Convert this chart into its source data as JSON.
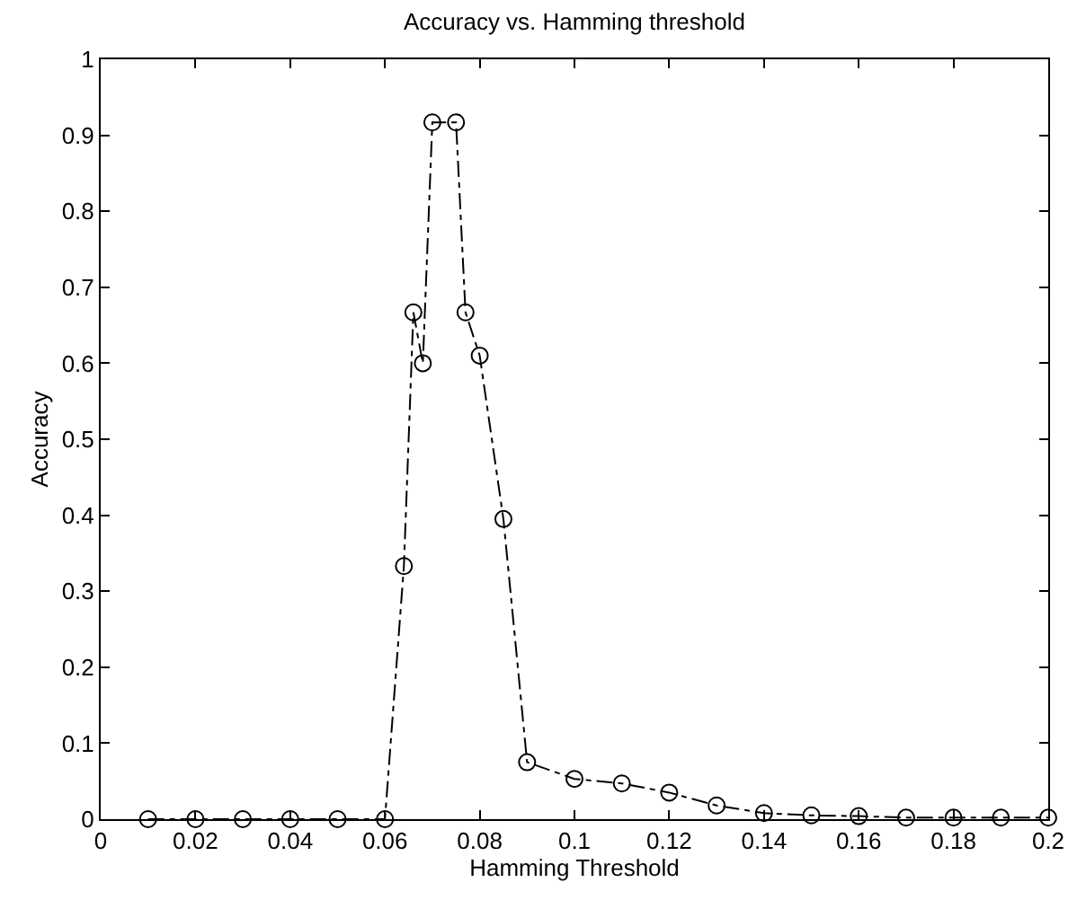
{
  "chart_data": {
    "type": "line",
    "title": "Accuracy vs. Hamming threshold",
    "xlabel": "Hamming Threshold",
    "ylabel": "Accuracy",
    "x": [
      0.01,
      0.02,
      0.03,
      0.04,
      0.05,
      0.06,
      0.064,
      0.066,
      0.068,
      0.07,
      0.075,
      0.077,
      0.08,
      0.085,
      0.09,
      0.1,
      0.11,
      0.12,
      0.13,
      0.14,
      0.15,
      0.16,
      0.17,
      0.18,
      0.19,
      0.2
    ],
    "series": [
      {
        "color": "#000000",
        "values": [
          0,
          0,
          0,
          0,
          0,
          0,
          0.333,
          0.667,
          0.6,
          0.917,
          0.917,
          0.667,
          0.61,
          0.395,
          0.075,
          0.053,
          0.047,
          0.035,
          0.018,
          0.008,
          0.005,
          0.004,
          0.002,
          0.002,
          0.002,
          0.002
        ]
      }
    ],
    "xlim": [
      0,
      0.2
    ],
    "xticks": [
      0,
      0.02,
      0.04,
      0.06,
      0.08,
      0.1,
      0.12,
      0.14,
      0.16,
      0.18,
      0.2
    ],
    "ylim": [
      0,
      1
    ],
    "yticks": [
      0,
      0.1,
      0.2,
      0.3,
      0.4,
      0.5,
      0.6,
      0.7,
      0.8,
      0.9,
      1
    ],
    "marker": "circle",
    "line_style": "dashdot"
  }
}
